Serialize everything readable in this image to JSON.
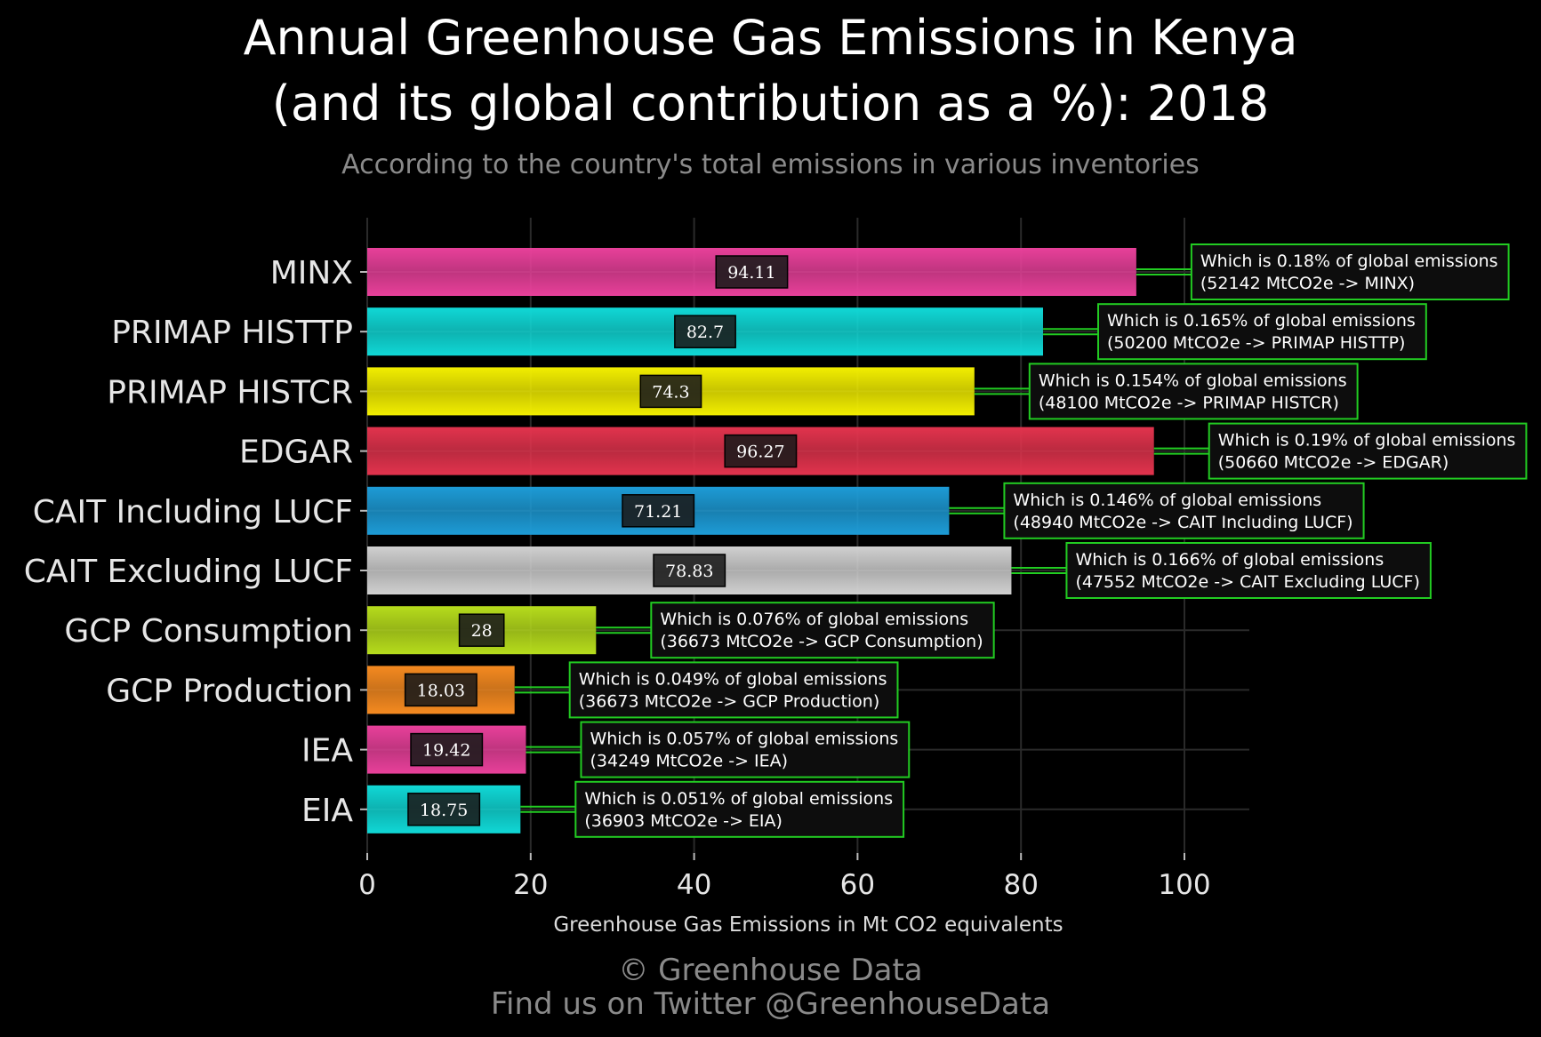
{
  "header": {
    "title_line1": "Annual Greenhouse Gas Emissions in Kenya",
    "title_line2": "(and its global contribution as a %): 2018",
    "subtitle": "According to the country's total emissions in various inventories"
  },
  "footer": {
    "line1": "© Greenhouse Data",
    "line2": "Find us on Twitter @GreenhouseData"
  },
  "colors": {
    "connector": "#22cc22",
    "annotation_border": "#22cc22",
    "annotation_bg": "#0d0d0d",
    "label_box_bg": "#1a1a1a",
    "grid": "#2a2a2a"
  },
  "chart_data": {
    "type": "bar",
    "orientation": "horizontal",
    "xlabel": "Greenhouse Gas Emissions in Mt CO2 equivalents",
    "ylabel": "",
    "xlim": [
      0,
      108
    ],
    "xticks": [
      "0",
      "20",
      "40",
      "60",
      "80",
      "100"
    ],
    "grid": true,
    "categories": [
      "MINX",
      "PRIMAP HISTTP",
      "PRIMAP HISTCR",
      "EDGAR",
      "CAIT Including LUCF",
      "CAIT Excluding LUCF",
      "GCP Consumption",
      "GCP Production",
      "IEA",
      "EIA"
    ],
    "values": [
      94.11,
      82.7,
      74.3,
      96.27,
      71.21,
      78.83,
      28,
      18.03,
      19.42,
      18.75
    ],
    "value_labels": [
      "94.11",
      "82.7",
      "74.3",
      "96.27",
      "71.21",
      "78.83",
      "28",
      "18.03",
      "19.42",
      "18.75"
    ],
    "bar_colors": [
      "#e8409a",
      "#10d8d6",
      "#f2ee00",
      "#e2334d",
      "#1d9bd6",
      "#d0d0d0",
      "#b6dc1c",
      "#f58a20",
      "#e8409a",
      "#10d8d6"
    ],
    "annotations": [
      {
        "line1": "Which is 0.18% of global emissions",
        "line2": "(52142 MtCO2e -> MINX)"
      },
      {
        "line1": "Which is 0.165% of global emissions",
        "line2": "(50200 MtCO2e -> PRIMAP HISTTP)"
      },
      {
        "line1": "Which is 0.154% of global emissions",
        "line2": "(48100 MtCO2e -> PRIMAP HISTCR)"
      },
      {
        "line1": "Which is 0.19% of global emissions",
        "line2": "(50660 MtCO2e -> EDGAR)"
      },
      {
        "line1": "Which is 0.146% of global emissions",
        "line2": "(48940 MtCO2e -> CAIT Including LUCF)"
      },
      {
        "line1": "Which is 0.166% of global emissions",
        "line2": "(47552 MtCO2e -> CAIT Excluding LUCF)"
      },
      {
        "line1": "Which is 0.076% of global emissions",
        "line2": "(36673 MtCO2e -> GCP Consumption)"
      },
      {
        "line1": "Which is 0.049% of global emissions",
        "line2": "(36673 MtCO2e -> GCP Production)"
      },
      {
        "line1": "Which is 0.057% of global emissions",
        "line2": "(34249 MtCO2e -> IEA)"
      },
      {
        "line1": "Which is 0.051% of global emissions",
        "line2": "(36903 MtCO2e -> EIA)"
      }
    ]
  }
}
